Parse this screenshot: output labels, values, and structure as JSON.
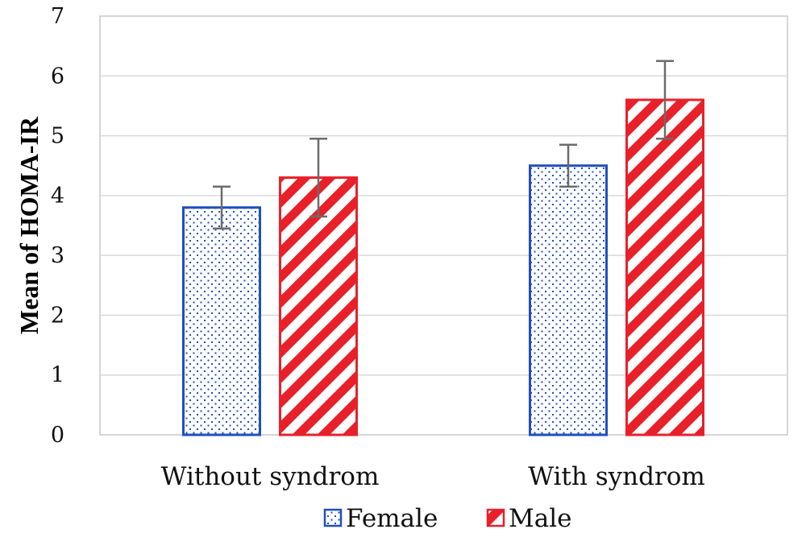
{
  "chart_data": {
    "type": "bar",
    "title": "",
    "xlabel": "",
    "ylabel": "Mean of HOMA-IR",
    "ylim": [
      0,
      7
    ],
    "yticks": [
      0,
      1,
      2,
      3,
      4,
      5,
      6,
      7
    ],
    "grid": true,
    "legend_position": "bottom",
    "categories": [
      "Without syndrom",
      "With syndrom"
    ],
    "series": [
      {
        "name": "Female",
        "values": [
          3.8,
          4.5
        ],
        "error": [
          0.35,
          0.35
        ],
        "color": "#1f4fbf",
        "pattern": "dots"
      },
      {
        "name": "Male",
        "values": [
          4.3,
          5.6
        ],
        "error": [
          0.65,
          0.65
        ],
        "color": "#e8202a",
        "pattern": "diagonal-stripes"
      }
    ],
    "gridline_color": "#d9d9d9",
    "errorbar_color": "#6b6b6b"
  }
}
